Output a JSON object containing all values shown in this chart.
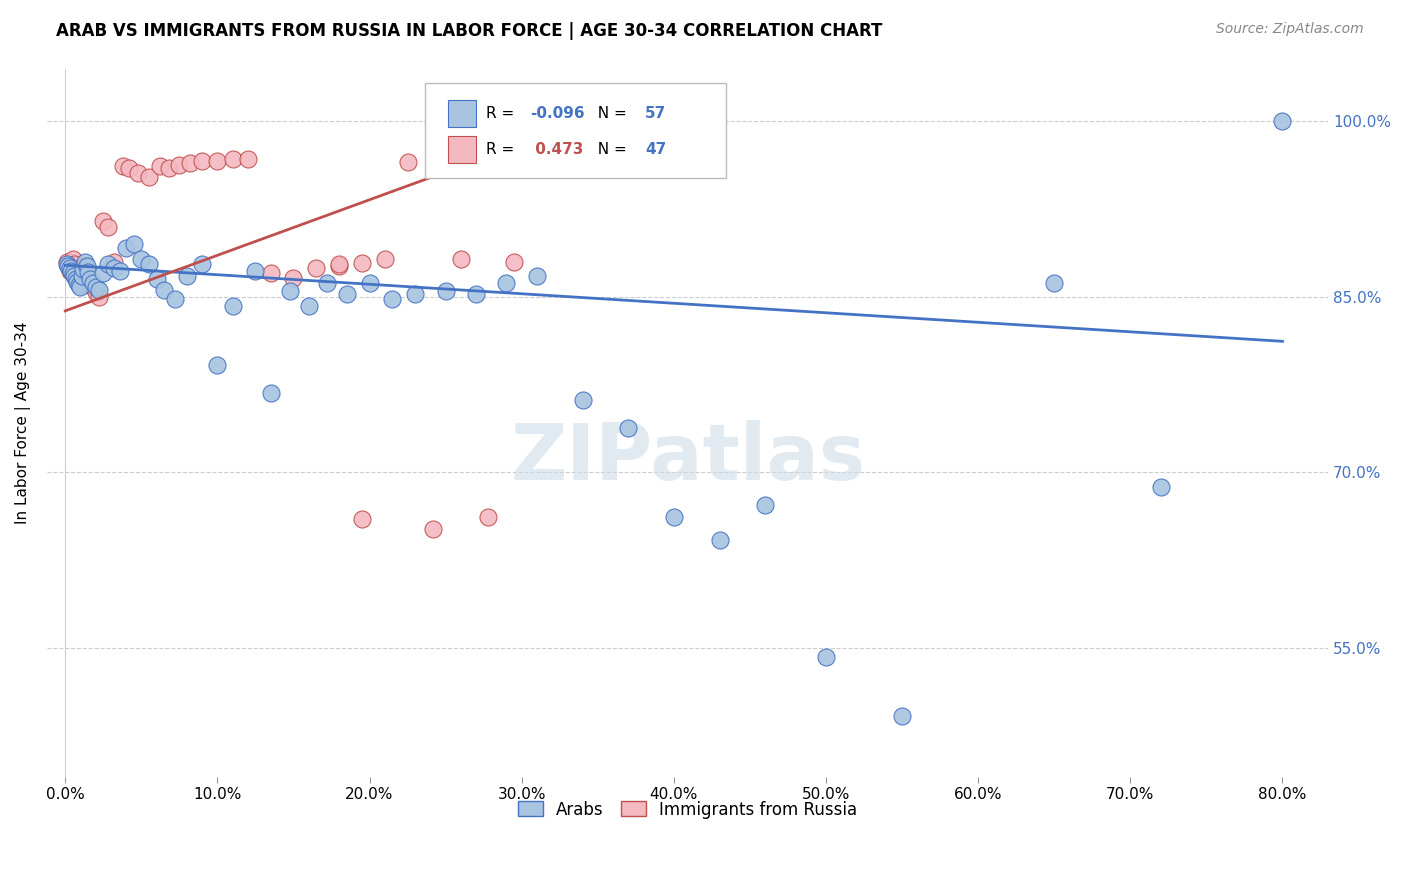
{
  "title": "ARAB VS IMMIGRANTS FROM RUSSIA IN LABOR FORCE | AGE 30-34 CORRELATION CHART",
  "source": "Source: ZipAtlas.com",
  "ylabel": "In Labor Force | Age 30-34",
  "xlabel_ticks": [
    "0.0%",
    "10.0%",
    "20.0%",
    "30.0%",
    "40.0%",
    "50.0%",
    "60.0%",
    "70.0%",
    "80.0%"
  ],
  "xlabel_vals": [
    0.0,
    0.1,
    0.2,
    0.3,
    0.4,
    0.5,
    0.6,
    0.7,
    0.8
  ],
  "ylabel_ticks": [
    "55.0%",
    "70.0%",
    "85.0%",
    "100.0%"
  ],
  "ylabel_vals": [
    0.55,
    0.7,
    0.85,
    1.0
  ],
  "ylim": [
    0.44,
    1.045
  ],
  "xlim": [
    -0.012,
    0.83
  ],
  "blue_R": -0.096,
  "blue_N": 57,
  "pink_R": 0.473,
  "pink_N": 47,
  "blue_color": "#a8c4e0",
  "blue_line_color": "#4472c4",
  "pink_color": "#f4b8c1",
  "pink_line_color": "#c0504d",
  "blue_scatter_x": [
    0.001,
    0.002,
    0.003,
    0.004,
    0.005,
    0.006,
    0.007,
    0.008,
    0.009,
    0.01,
    0.011,
    0.012,
    0.013,
    0.014,
    0.015,
    0.016,
    0.018,
    0.02,
    0.022,
    0.025,
    0.028,
    0.032,
    0.036,
    0.04,
    0.045,
    0.05,
    0.055,
    0.06,
    0.065,
    0.072,
    0.08,
    0.09,
    0.1,
    0.11,
    0.125,
    0.135,
    0.148,
    0.16,
    0.172,
    0.185,
    0.2,
    0.215,
    0.23,
    0.25,
    0.27,
    0.29,
    0.31,
    0.34,
    0.37,
    0.4,
    0.43,
    0.46,
    0.5,
    0.55,
    0.65,
    0.72,
    0.8
  ],
  "blue_scatter_y": [
    0.878,
    0.876,
    0.875,
    0.872,
    0.87,
    0.868,
    0.865,
    0.863,
    0.86,
    0.858,
    0.868,
    0.874,
    0.88,
    0.876,
    0.871,
    0.865,
    0.862,
    0.858,
    0.856,
    0.87,
    0.878,
    0.875,
    0.872,
    0.892,
    0.895,
    0.882,
    0.878,
    0.865,
    0.856,
    0.848,
    0.868,
    0.878,
    0.792,
    0.842,
    0.872,
    0.768,
    0.855,
    0.842,
    0.862,
    0.852,
    0.862,
    0.848,
    0.852,
    0.855,
    0.852,
    0.862,
    0.868,
    0.762,
    0.738,
    0.662,
    0.642,
    0.672,
    0.542,
    0.492,
    0.862,
    0.688,
    1.0
  ],
  "pink_scatter_x": [
    0.001,
    0.002,
    0.003,
    0.004,
    0.005,
    0.006,
    0.007,
    0.008,
    0.009,
    0.01,
    0.011,
    0.012,
    0.013,
    0.014,
    0.015,
    0.016,
    0.018,
    0.02,
    0.022,
    0.025,
    0.028,
    0.032,
    0.038,
    0.042,
    0.048,
    0.055,
    0.062,
    0.068,
    0.075,
    0.082,
    0.09,
    0.1,
    0.11,
    0.12,
    0.135,
    0.15,
    0.165,
    0.18,
    0.195,
    0.21,
    0.225,
    0.242,
    0.26,
    0.278,
    0.295,
    0.18,
    0.195
  ],
  "pink_scatter_y": [
    0.88,
    0.876,
    0.872,
    0.88,
    0.882,
    0.878,
    0.874,
    0.869,
    0.864,
    0.86,
    0.866,
    0.872,
    0.876,
    0.87,
    0.866,
    0.862,
    0.858,
    0.854,
    0.85,
    0.915,
    0.91,
    0.88,
    0.962,
    0.96,
    0.956,
    0.952,
    0.962,
    0.96,
    0.963,
    0.964,
    0.966,
    0.966,
    0.968,
    0.968,
    0.87,
    0.866,
    0.875,
    0.876,
    0.879,
    0.882,
    0.965,
    0.652,
    0.882,
    0.662,
    0.88,
    0.878,
    0.66
  ],
  "blue_trend_x": [
    0.0,
    0.8
  ],
  "blue_trend_y": [
    0.877,
    0.812
  ],
  "pink_trend_x": [
    0.0,
    0.295
  ],
  "pink_trend_y": [
    0.838,
    0.978
  ],
  "watermark": "ZIPatlas",
  "grid_color": "#cccccc",
  "background_color": "#ffffff"
}
